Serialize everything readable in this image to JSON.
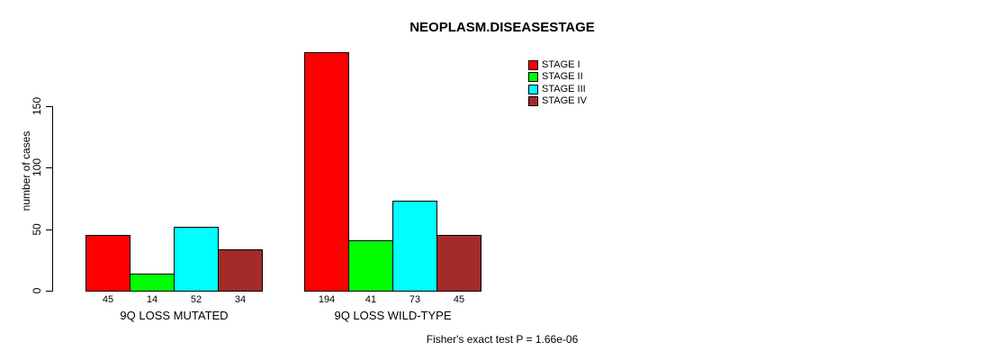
{
  "title": "NEOPLASM.DISEASESTAGE",
  "footnote": "Fisher's exact test P = 1.66e-06",
  "chart_data": {
    "type": "bar",
    "title": "NEOPLASM.DISEASESTAGE",
    "xlabel": "",
    "ylabel": "number of cases",
    "categories": [
      "9Q LOSS MUTATED",
      "9Q LOSS WILD-TYPE"
    ],
    "series": [
      {
        "name": "STAGE I",
        "color": "#ff0000",
        "values": [
          45,
          194
        ]
      },
      {
        "name": "STAGE II",
        "color": "#00ff00",
        "values": [
          14,
          41
        ]
      },
      {
        "name": "STAGE III",
        "color": "#00ffff",
        "values": [
          52,
          73
        ]
      },
      {
        "name": "STAGE IV",
        "color": "#a52a2a",
        "values": [
          34,
          45
        ]
      }
    ],
    "bar_value_labels": [
      [
        "45",
        "14",
        "52",
        "34"
      ],
      [
        "194",
        "41",
        "73",
        "45"
      ]
    ],
    "yticks": [
      0,
      50,
      100,
      150
    ],
    "ylim": [
      0,
      200
    ],
    "grid": false,
    "legend_position": "top-right",
    "footnote": "Fisher's exact test P = 1.66e-06"
  }
}
